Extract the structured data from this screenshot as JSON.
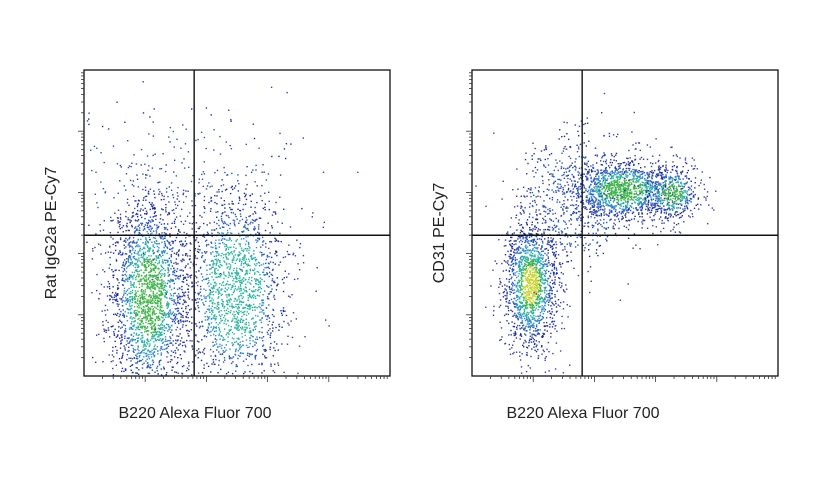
{
  "chart_data": [
    {
      "type": "scatter",
      "subtype": "flow-cytometry-density-dot-plot",
      "xlabel": "B220 Alexa Fluor 700",
      "ylabel": "Rat IgG2a PE-Cy7",
      "xscale": "log",
      "yscale": "log",
      "quadrant_gate": {
        "x": 0.36,
        "y": 0.46
      },
      "populations": [
        {
          "cx": 0.21,
          "cy": 0.26,
          "sx": 0.065,
          "sy": 0.17,
          "n": 2200,
          "peak": "green"
        },
        {
          "cx": 0.49,
          "cy": 0.28,
          "sx": 0.085,
          "sy": 0.17,
          "n": 1700,
          "peak": "cyan"
        },
        {
          "cx": 0.3,
          "cy": 0.62,
          "sx": 0.22,
          "sy": 0.14,
          "n": 220,
          "peak": "none"
        }
      ],
      "grid": false
    },
    {
      "type": "scatter",
      "subtype": "flow-cytometry-density-dot-plot",
      "xlabel": "B220 Alexa Fluor 700",
      "ylabel": "CD31 PE-Cy7",
      "xscale": "log",
      "yscale": "log",
      "quadrant_gate": {
        "x": 0.36,
        "y": 0.46
      },
      "populations": [
        {
          "cx": 0.19,
          "cy": 0.3,
          "sx": 0.045,
          "sy": 0.11,
          "n": 1500,
          "peak": "yellow-green"
        },
        {
          "cx": 0.49,
          "cy": 0.61,
          "sx": 0.09,
          "sy": 0.05,
          "n": 1300,
          "peak": "green"
        },
        {
          "cx": 0.65,
          "cy": 0.6,
          "sx": 0.045,
          "sy": 0.045,
          "n": 450,
          "peak": "green"
        },
        {
          "cx": 0.34,
          "cy": 0.58,
          "sx": 0.1,
          "sy": 0.11,
          "n": 600,
          "peak": "none"
        }
      ],
      "grid": false
    }
  ]
}
